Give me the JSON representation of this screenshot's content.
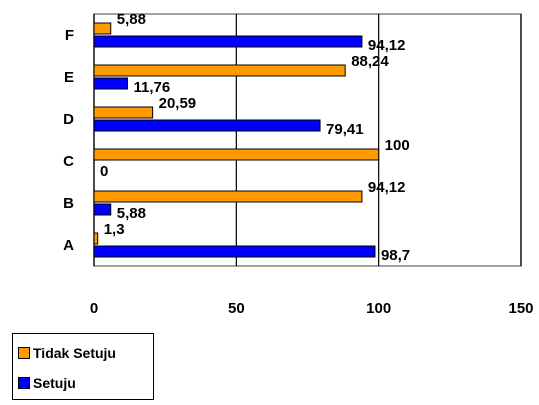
{
  "chart_data": {
    "type": "bar",
    "orientation": "horizontal",
    "categories": [
      "A",
      "B",
      "C",
      "D",
      "E",
      "F"
    ],
    "series": [
      {
        "name": "Tidak Setuju",
        "color": "#FF9900",
        "values": [
          1.3,
          94.12,
          100,
          20.59,
          88.24,
          5.88
        ],
        "labels": [
          "1,3",
          "94,12",
          "100",
          "20,59",
          "88,24",
          "5,88"
        ]
      },
      {
        "name": "Setuju",
        "color": "#0000FF",
        "values": [
          98.7,
          5.88,
          0,
          79.41,
          11.76,
          94.12
        ],
        "labels": [
          "98,7",
          "5,88",
          "0",
          "79,41",
          "11,76",
          "94,12"
        ]
      }
    ],
    "xlim": [
      0,
      150
    ],
    "x_ticks": [
      0,
      50,
      100,
      150
    ],
    "x_tick_labels": [
      "0",
      "50",
      "100",
      "150"
    ],
    "grid": "vertical-major",
    "legend_position": "bottom-left"
  }
}
